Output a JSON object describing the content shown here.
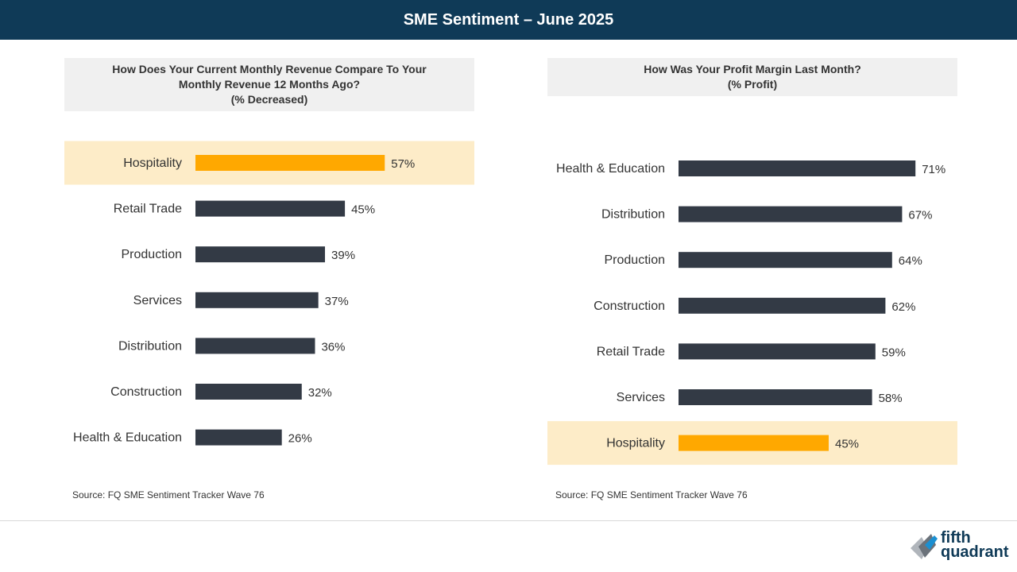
{
  "header": {
    "title": "SME Sentiment – June 2025"
  },
  "charts": [
    {
      "title_lines": [
        "How Does Your Current Monthly Revenue Compare To Your",
        "Monthly Revenue 12 Months Ago?",
        "(% Decreased)"
      ],
      "source": "Source: FQ SME Sentiment Tracker Wave 76"
    },
    {
      "title_lines": [
        "How Was Your Profit Margin Last Month?",
        "(% Profit)"
      ],
      "source": "Source: FQ SME Sentiment Tracker Wave 76"
    }
  ],
  "chart_data": [
    {
      "type": "bar",
      "orientation": "horizontal",
      "title": "How Does Your Current Monthly Revenue Compare To Your Monthly Revenue 12 Months Ago? (% Decreased)",
      "categories": [
        "Hospitality",
        "Retail Trade",
        "Production",
        "Services",
        "Distribution",
        "Construction",
        "Health & Education"
      ],
      "values": [
        57,
        45,
        39,
        37,
        36,
        32,
        26
      ],
      "unit": "%",
      "highlight": "Hospitality",
      "xlim": [
        0,
        100
      ]
    },
    {
      "type": "bar",
      "orientation": "horizontal",
      "title": "How Was Your Profit Margin Last Month? (% Profit)",
      "categories": [
        "Health & Education",
        "Distribution",
        "Production",
        "Construction",
        "Retail Trade",
        "Services",
        "Hospitality"
      ],
      "values": [
        71,
        67,
        64,
        62,
        59,
        58,
        45
      ],
      "unit": "%",
      "highlight": "Hospitality",
      "xlim": [
        0,
        100
      ]
    }
  ],
  "colors": {
    "bar": "#333a45",
    "highlight_bar": "#ffa800",
    "highlight_band": "#fdecc8",
    "header_bg": "#0f3a57"
  },
  "logo": {
    "line1": "fifth",
    "line2": "quadrant",
    "icon": "fifth-quadrant-logo-mark"
  }
}
